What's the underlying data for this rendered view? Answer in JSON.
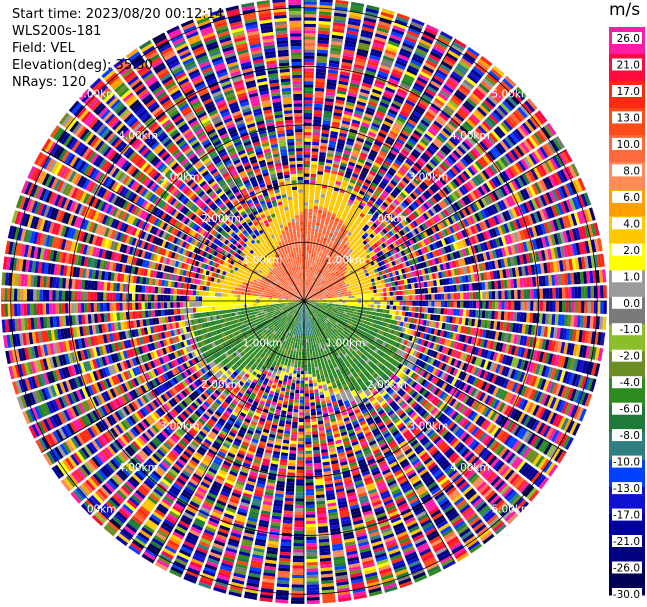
{
  "header": {
    "start_time": "Start time: 2023/08/20 00:12:14",
    "instrument": "WLS200s-181",
    "field": "Field: VEL",
    "elevation": "Elevation(deg): 35.30",
    "nrays": "NRays: 120"
  },
  "colorbar": {
    "unit": "m/s",
    "ticks": [
      "26.0",
      "21.0",
      "17.0",
      "13.0",
      "10.0",
      "8.0",
      "6.0",
      "4.0",
      "2.0",
      "1.0",
      "0.0",
      "-1.0",
      "-2.0",
      "-4.0",
      "-6.0",
      "-8.0",
      "-10.0",
      "-13.0",
      "-17.0",
      "-21.0",
      "-26.0",
      "-30.0"
    ],
    "colors": [
      "#ff1aa8",
      "#ff0a3c",
      "#ff2a10",
      "#ff4a1a",
      "#ff6a3c",
      "#ff8a5a",
      "#ffa000",
      "#ffc800",
      "#ffff00",
      "#9a9a9a",
      "#7a7a7a",
      "#8bbf2a",
      "#6b8e23",
      "#2e8b22",
      "#1f7a3a",
      "#2e7f7f",
      "#0040ff",
      "#1010d0",
      "#0000a0",
      "#000080",
      "#000055"
    ]
  },
  "chart_data": {
    "type": "heatmap",
    "title": "",
    "projection": "polar PPI scan",
    "field": "VEL",
    "units": "m/s",
    "nrays": 120,
    "elevation_deg": 35.3,
    "range_rings_km": [
      1.0,
      2.0,
      3.0,
      4.0,
      5.0
    ],
    "ring_labels": [
      "1.00km",
      "2.00km",
      "3.00km",
      "4.00km",
      "5.00km"
    ],
    "value_range": [
      -30.0,
      26.0
    ],
    "pattern": {
      "inner_north_sector_mps": 9.0,
      "inner_south_sector_mps": -5.0,
      "transition_ring_mps": 1.5,
      "outer_ranges": "noisy random velocities"
    }
  }
}
